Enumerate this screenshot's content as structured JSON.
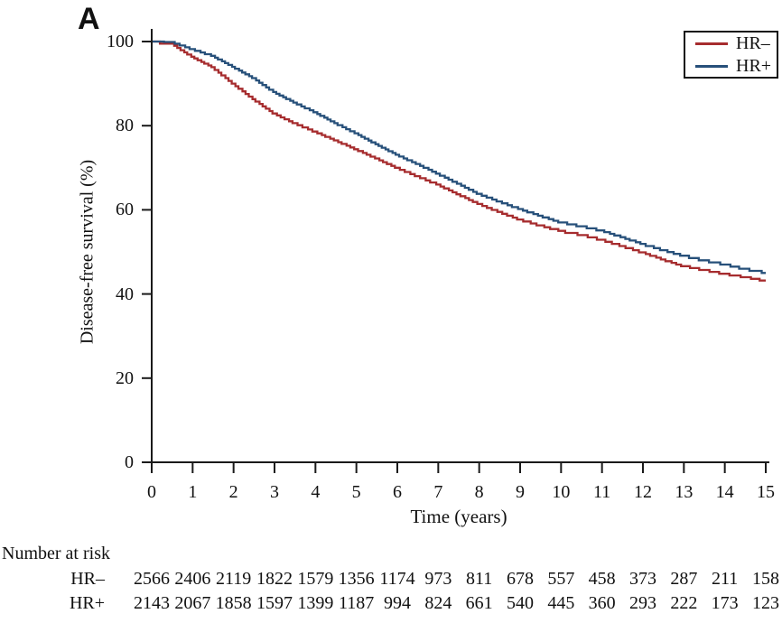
{
  "panel_label": "A",
  "colors": {
    "hr_minus": "#a62c2e",
    "hr_plus": "#27507a",
    "axis": "#1a1a1a",
    "text": "#111111"
  },
  "chart_data": {
    "type": "line",
    "subtype": "kaplan-meier-survival",
    "title": "",
    "xlabel": "Time (years)",
    "ylabel": "Disease-free survival (%)",
    "xlim": [
      0,
      15
    ],
    "ylim": [
      0,
      100
    ],
    "x_ticks": [
      0,
      1,
      2,
      3,
      4,
      5,
      6,
      7,
      8,
      9,
      10,
      11,
      12,
      13,
      14,
      15
    ],
    "y_ticks": [
      0,
      20,
      40,
      60,
      80,
      100
    ],
    "grid": false,
    "legend_position": "top-right",
    "x": [
      0,
      0.5,
      1,
      1.5,
      2,
      2.5,
      3,
      3.5,
      4,
      4.5,
      5,
      5.5,
      6,
      6.5,
      7,
      7.5,
      8,
      8.5,
      9,
      9.5,
      10,
      10.5,
      11,
      11.5,
      12,
      12.5,
      13,
      13.5,
      14,
      14.5,
      15
    ],
    "series": [
      {
        "name": "HR–",
        "color": "#a62c2e",
        "values": [
          100,
          99.5,
          96.4,
          93.9,
          90,
          86.3,
          82.9,
          80.6,
          78.6,
          76.5,
          74.4,
          72.2,
          70,
          68,
          66,
          63.7,
          61.4,
          59.5,
          57.7,
          56.3,
          55,
          54,
          52.9,
          51.4,
          49.9,
          48.2,
          46.6,
          45.7,
          44.8,
          44,
          43.2
        ]
      },
      {
        "name": "HR+",
        "color": "#27507a",
        "values": [
          100,
          99.9,
          98.2,
          96.6,
          94,
          91.3,
          88,
          85.5,
          83.2,
          80.6,
          78.2,
          75.6,
          73.1,
          70.9,
          68.6,
          66.2,
          63.8,
          62,
          60.2,
          58.6,
          57,
          56.1,
          55.1,
          53.5,
          51.9,
          50.4,
          49.1,
          48,
          47,
          46,
          45
        ]
      }
    ]
  },
  "legend": {
    "items": [
      {
        "label": "HR–",
        "color": "#a62c2e"
      },
      {
        "label": "HR+",
        "color": "#27507a"
      }
    ]
  },
  "number_at_risk": {
    "title": "Number at risk",
    "rows": [
      {
        "label": "HR–",
        "counts": [
          2566,
          2406,
          2119,
          1822,
          1579,
          1356,
          1174,
          973,
          811,
          678,
          557,
          458,
          373,
          287,
          211,
          158
        ]
      },
      {
        "label": "HR+",
        "counts": [
          2143,
          2067,
          1858,
          1597,
          1399,
          1187,
          994,
          824,
          661,
          540,
          445,
          360,
          293,
          222,
          173,
          123
        ]
      }
    ]
  }
}
